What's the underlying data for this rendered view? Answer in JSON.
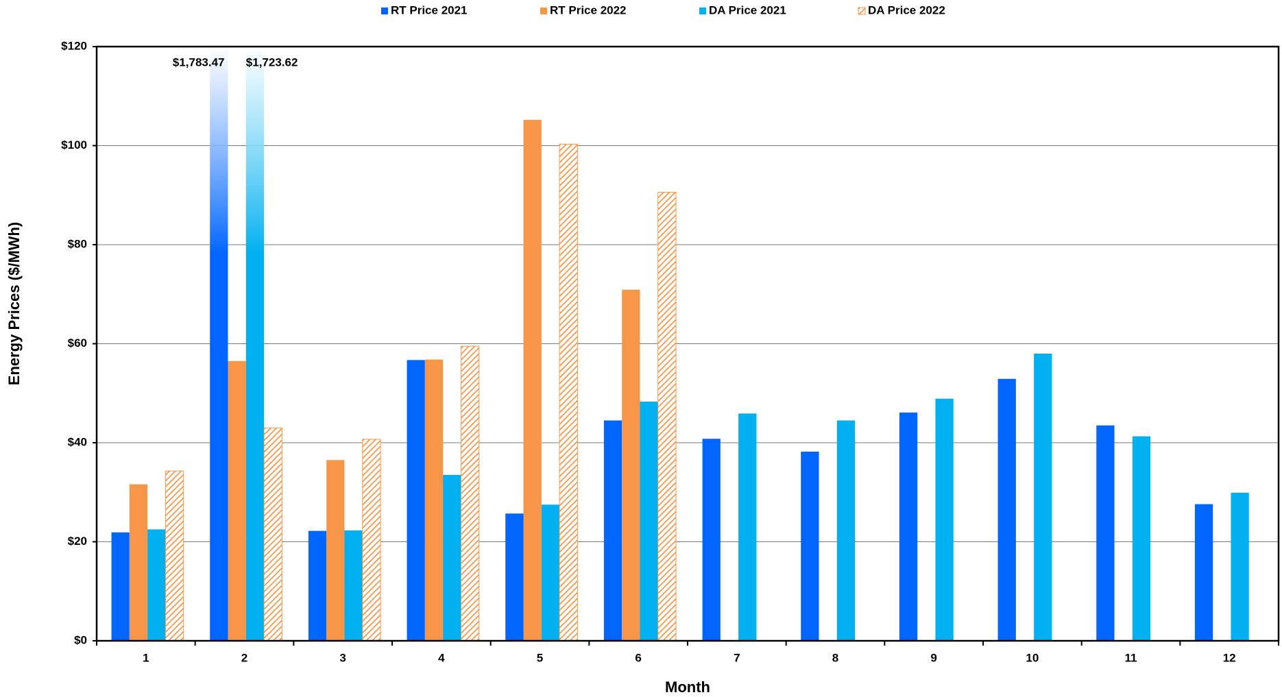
{
  "chart_data": {
    "type": "bar",
    "x_label": "Month",
    "y_label": "Energy Prices ($/MWh)",
    "categories": [
      "1",
      "2",
      "3",
      "4",
      "5",
      "6",
      "7",
      "8",
      "9",
      "10",
      "11",
      "12"
    ],
    "series": [
      {
        "name": "RT Price 2021",
        "color": "#0066ff",
        "values": [
          21.9,
          1783.47,
          22.2,
          56.7,
          25.7,
          44.5,
          40.8,
          38.2,
          46.1,
          52.9,
          43.5,
          27.6
        ],
        "value_labels": [
          null,
          "$1,783.47",
          null,
          null,
          null,
          null,
          null,
          null,
          null,
          null,
          null,
          null
        ]
      },
      {
        "name": "RT Price 2022",
        "color": "#f79646",
        "values": [
          31.6,
          56.5,
          36.5,
          56.8,
          105.2,
          70.9,
          null,
          null,
          null,
          null,
          null,
          null
        ]
      },
      {
        "name": "DA Price 2021",
        "color": "#00b0f0",
        "values": [
          22.5,
          1723.62,
          22.3,
          33.5,
          27.5,
          48.3,
          45.9,
          44.5,
          48.9,
          58.0,
          41.3,
          29.9
        ],
        "value_labels": [
          null,
          "$1,723.62",
          null,
          null,
          null,
          null,
          null,
          null,
          null,
          null,
          null,
          null
        ]
      },
      {
        "name": "DA Price 2022",
        "color": "#f79646",
        "pattern": "hatch",
        "values": [
          34.3,
          43.0,
          40.7,
          59.5,
          100.3,
          90.6,
          null,
          null,
          null,
          null,
          null,
          null
        ]
      }
    ],
    "ylim": [
      0,
      120
    ],
    "yticks": [
      {
        "value": 0,
        "label": "$0"
      },
      {
        "value": 20,
        "label": "$20"
      },
      {
        "value": 40,
        "label": "$40"
      },
      {
        "value": 60,
        "label": "$60"
      },
      {
        "value": 80,
        "label": "$80"
      },
      {
        "value": 100,
        "label": "$100"
      },
      {
        "value": 120,
        "label": "$120"
      }
    ],
    "grid": true,
    "legend": "top"
  }
}
